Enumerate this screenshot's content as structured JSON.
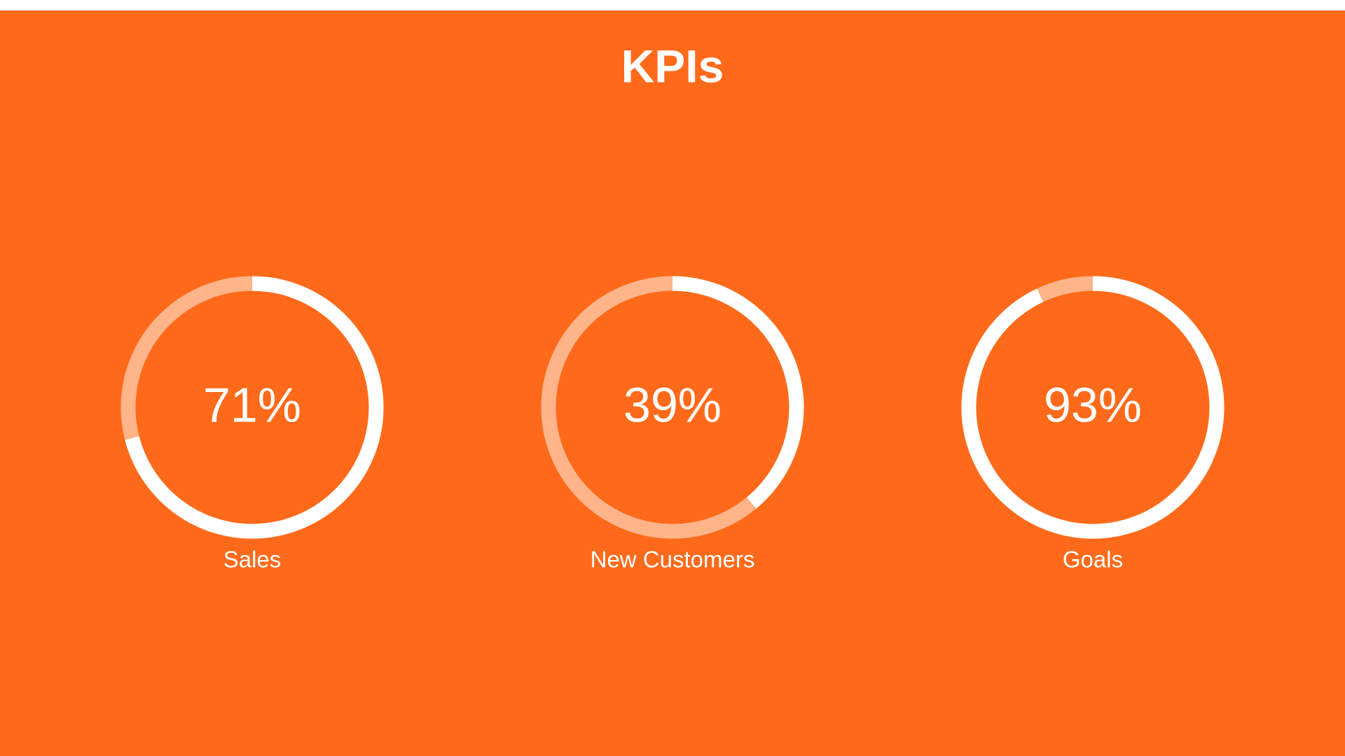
{
  "chart_data": {
    "type": "gauge",
    "title": "KPIs",
    "categories": [
      "Sales",
      "New Customers",
      "Goals"
    ],
    "values": [
      71,
      39,
      93
    ],
    "value_labels": [
      "71%",
      "39%",
      "93%"
    ],
    "ylim": [
      0,
      100
    ],
    "color": "#ffffff",
    "track_color": "#ffb48a"
  }
}
